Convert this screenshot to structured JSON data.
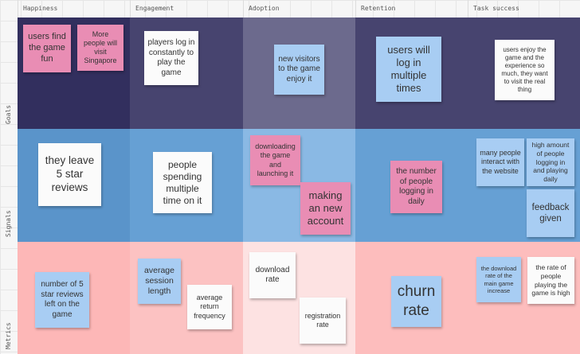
{
  "columns": [
    "Happiness",
    "Engagement",
    "Adoption",
    "Retention",
    "Task success"
  ],
  "rows": [
    "Goals",
    "Signals",
    "Metrics"
  ],
  "colors": {
    "goals": [
      "#322f5e",
      "#47446f",
      "#6c6a8d",
      "#47446f",
      "#47446f"
    ],
    "signals": [
      "#5a94ca",
      "#66a0d4",
      "#8ab9e4",
      "#66a0d4",
      "#66a0d4"
    ],
    "metrics": [
      "#fdb7b7",
      "#fcc2c2",
      "#fde2e2",
      "#fdbdbd",
      "#fdbdbd"
    ],
    "sticky_pink": "#e98db4",
    "sticky_white": "#fbfbfb",
    "sticky_blue": "#a8cdf3"
  },
  "stickies": {
    "s1": "users find the game fun",
    "s2": "More people will visit Singapore",
    "s3": "players log in constantly to play the game",
    "s4": "new visitors to the game enjoy it",
    "s5": "users will log in multiple times",
    "s6": "users enjoy the game and the experience so much, they want to visit the real thing",
    "s7": "they leave 5 star reviews",
    "s8": "people spending multiple time on it",
    "s9": "downloading the game and launching it",
    "s10": "making an new account",
    "s11": "the number of people logging in daily",
    "s12": "many people interact with the website",
    "s13": "high amount of people logging in and playing daily",
    "s14": "feedback given",
    "s15": "number of 5 star reviews left on the game",
    "s16": "average session length",
    "s17": "average return frequency",
    "s18": "download rate",
    "s19": "registration rate",
    "s20": "churn rate",
    "s21": "the download rate of the main game increase",
    "s22": "the rate of people playing the game is high"
  }
}
